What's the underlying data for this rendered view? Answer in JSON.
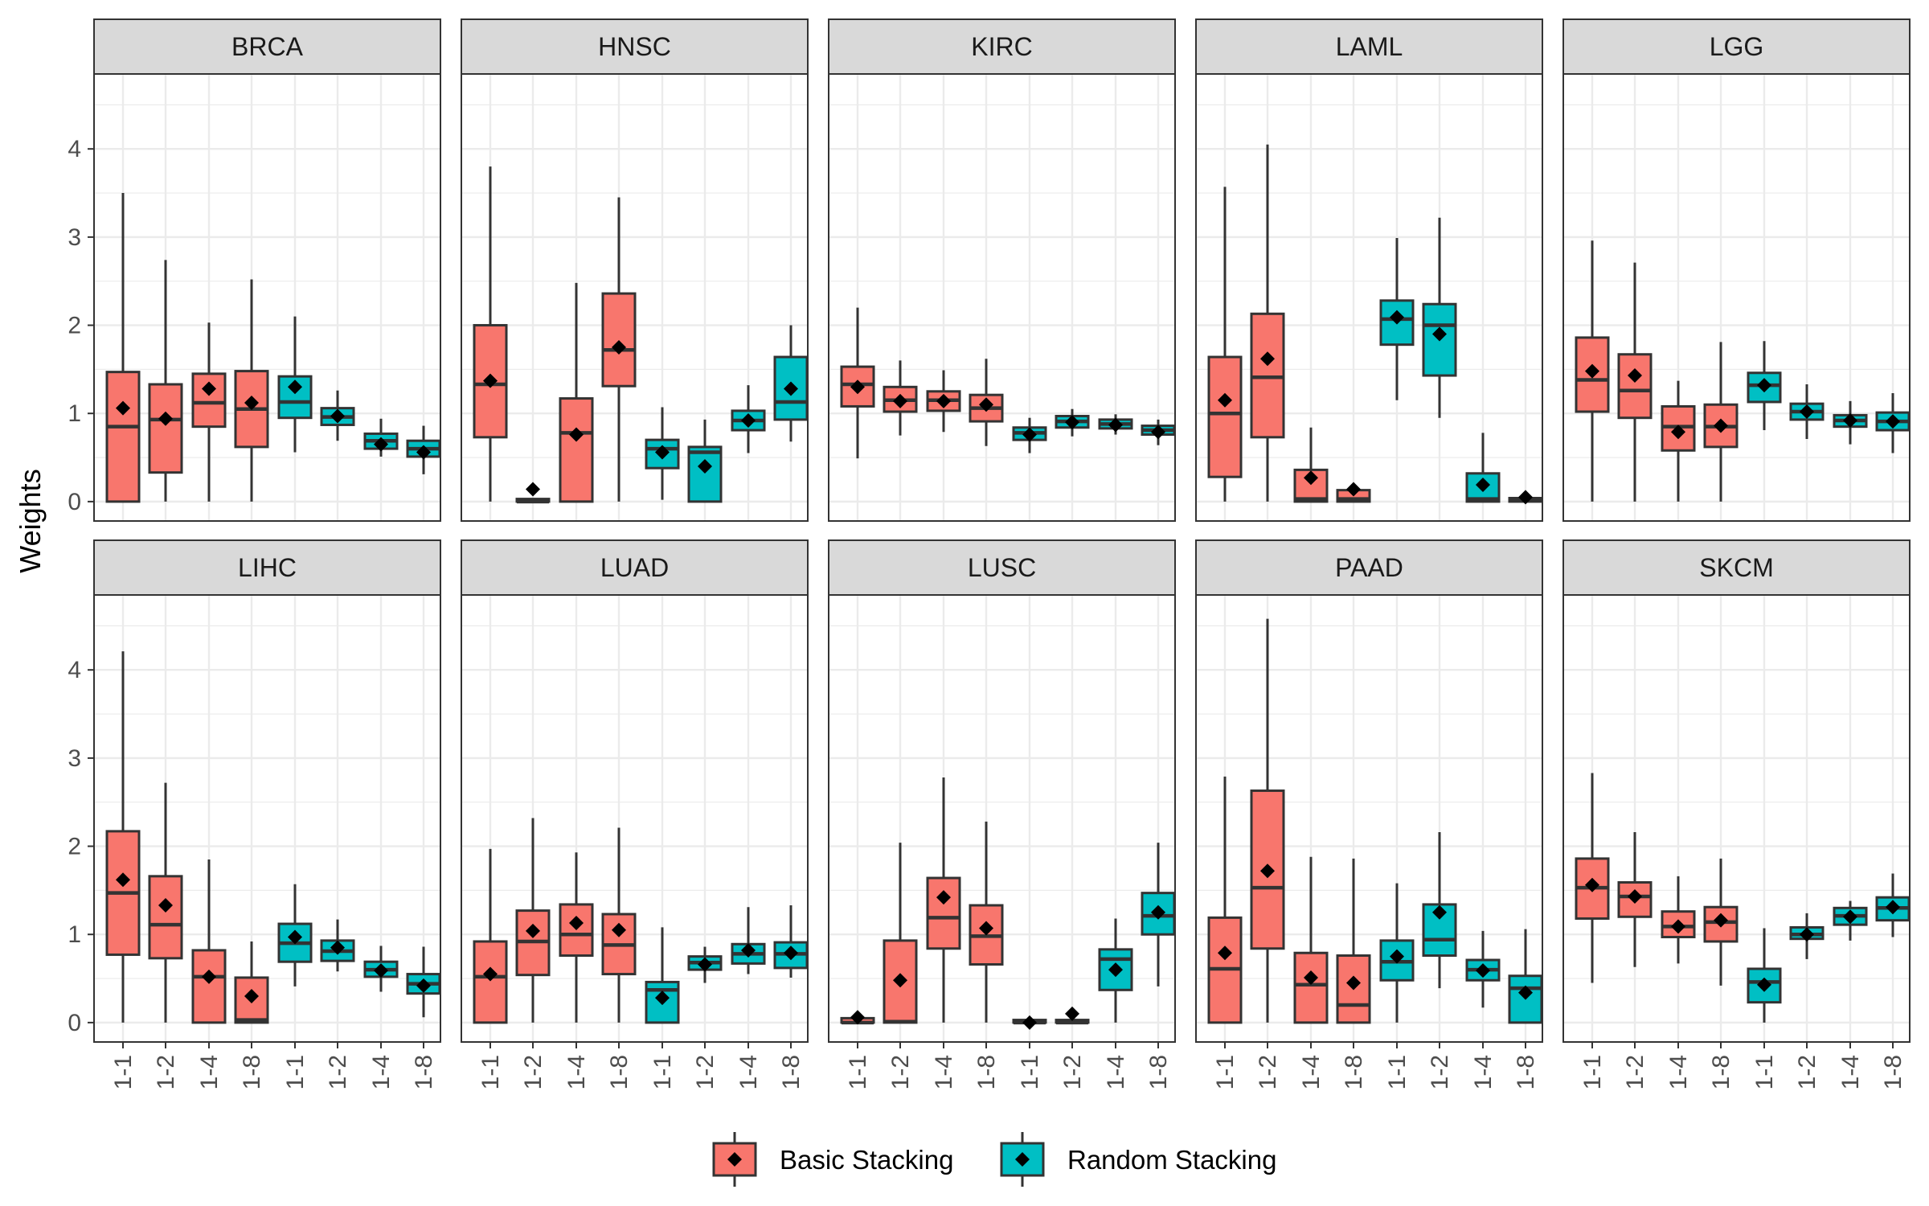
{
  "chart_data": {
    "type": "box",
    "ylabel": "Weights",
    "xlabel": "",
    "ylim": [
      -0.22,
      4.85
    ],
    "yticks": [
      0,
      1,
      2,
      3,
      4
    ],
    "categories": [
      "1-1",
      "1-2",
      "1-4",
      "1-8"
    ],
    "series": [
      {
        "name": "Basic Stacking",
        "color": "#F8766D"
      },
      {
        "name": "Random Stacking",
        "color": "#00BFC4"
      }
    ],
    "box_fields": [
      "ymin",
      "q1",
      "median",
      "q3",
      "ymax",
      "mean"
    ],
    "panels": [
      {
        "title": "BRCA",
        "basic": [
          [
            0,
            0,
            0.85,
            1.47,
            3.5,
            1.06
          ],
          [
            0,
            0.33,
            0.93,
            1.33,
            2.74,
            0.94
          ],
          [
            0,
            0.85,
            1.12,
            1.45,
            2.03,
            1.28
          ],
          [
            0,
            0.62,
            1.05,
            1.48,
            2.52,
            1.12
          ]
        ],
        "random": [
          [
            0.56,
            0.95,
            1.13,
            1.42,
            2.1,
            1.3
          ],
          [
            0.69,
            0.87,
            0.96,
            1.06,
            1.26,
            0.97
          ],
          [
            0.51,
            0.6,
            0.69,
            0.77,
            0.94,
            0.65
          ],
          [
            0.31,
            0.51,
            0.6,
            0.69,
            0.86,
            0.56
          ]
        ]
      },
      {
        "title": "HNSC",
        "basic": [
          [
            0,
            0.73,
            1.33,
            2.0,
            3.8,
            1.37
          ],
          [
            0,
            0,
            0,
            0.03,
            0.03,
            0.14
          ],
          [
            0,
            0,
            0.78,
            1.17,
            2.48,
            0.76
          ],
          [
            0,
            1.31,
            1.72,
            2.36,
            3.45,
            1.75
          ]
        ],
        "random": [
          [
            0.02,
            0.38,
            0.6,
            0.7,
            1.07,
            0.56
          ],
          [
            0,
            0,
            0.56,
            0.62,
            0.93,
            0.4
          ],
          [
            0.55,
            0.81,
            0.92,
            1.03,
            1.32,
            0.92
          ],
          [
            0.68,
            0.93,
            1.13,
            1.64,
            2.0,
            1.28
          ]
        ]
      },
      {
        "title": "KIRC",
        "basic": [
          [
            0.49,
            1.08,
            1.33,
            1.53,
            2.2,
            1.3
          ],
          [
            0.75,
            1.02,
            1.15,
            1.3,
            1.6,
            1.14
          ],
          [
            0.79,
            1.03,
            1.15,
            1.25,
            1.49,
            1.14
          ],
          [
            0.63,
            0.91,
            1.06,
            1.21,
            1.62,
            1.1
          ]
        ],
        "random": [
          [
            0.55,
            0.7,
            0.78,
            0.84,
            0.95,
            0.76
          ],
          [
            0.74,
            0.84,
            0.91,
            0.97,
            1.05,
            0.9
          ],
          [
            0.76,
            0.83,
            0.88,
            0.93,
            0.99,
            0.87
          ],
          [
            0.64,
            0.76,
            0.81,
            0.86,
            0.93,
            0.79
          ]
        ]
      },
      {
        "title": "LAML",
        "basic": [
          [
            0,
            0.28,
            1.0,
            1.64,
            3.57,
            1.15
          ],
          [
            0,
            0.73,
            1.41,
            2.13,
            4.05,
            1.62
          ],
          [
            0,
            0,
            0.03,
            0.36,
            0.84,
            0.27
          ],
          [
            0,
            0,
            0.03,
            0.13,
            0.13,
            0.14
          ]
        ],
        "random": [
          [
            1.15,
            1.78,
            2.07,
            2.28,
            2.99,
            2.09
          ],
          [
            0.95,
            1.43,
            2.0,
            2.24,
            3.22,
            1.9
          ],
          [
            0,
            0,
            0.03,
            0.32,
            0.78,
            0.19
          ],
          [
            0,
            0,
            0.02,
            0.04,
            0.04,
            0.05
          ]
        ]
      },
      {
        "title": "LGG",
        "basic": [
          [
            0,
            1.02,
            1.38,
            1.86,
            2.96,
            1.48
          ],
          [
            0,
            0.95,
            1.26,
            1.67,
            2.71,
            1.43
          ],
          [
            0,
            0.58,
            0.85,
            1.08,
            1.37,
            0.79
          ],
          [
            0,
            0.62,
            0.85,
            1.1,
            1.81,
            0.86
          ]
        ],
        "random": [
          [
            0.81,
            1.13,
            1.32,
            1.46,
            1.82,
            1.32
          ],
          [
            0.71,
            0.93,
            1.02,
            1.11,
            1.33,
            1.02
          ],
          [
            0.65,
            0.85,
            0.92,
            0.98,
            1.14,
            0.92
          ],
          [
            0.55,
            0.81,
            0.91,
            1.01,
            1.23,
            0.91
          ]
        ]
      },
      {
        "title": "LIHC",
        "basic": [
          [
            0,
            0.77,
            1.47,
            2.17,
            4.21,
            1.62
          ],
          [
            0,
            0.73,
            1.11,
            1.66,
            2.72,
            1.33
          ],
          [
            0,
            0,
            0.52,
            0.82,
            1.85,
            0.52
          ],
          [
            0,
            0,
            0.03,
            0.51,
            0.92,
            0.3
          ]
        ],
        "random": [
          [
            0.41,
            0.69,
            0.9,
            1.12,
            1.57,
            0.97
          ],
          [
            0.58,
            0.7,
            0.81,
            0.93,
            1.17,
            0.85
          ],
          [
            0.35,
            0.52,
            0.6,
            0.69,
            0.87,
            0.59
          ],
          [
            0.06,
            0.33,
            0.44,
            0.55,
            0.86,
            0.42
          ]
        ]
      },
      {
        "title": "LUAD",
        "basic": [
          [
            0,
            0,
            0.52,
            0.92,
            1.97,
            0.55
          ],
          [
            0,
            0.54,
            0.92,
            1.27,
            2.32,
            1.04
          ],
          [
            0,
            0.76,
            1.0,
            1.34,
            1.93,
            1.13
          ],
          [
            0,
            0.55,
            0.88,
            1.23,
            2.21,
            1.05
          ]
        ],
        "random": [
          [
            0,
            0,
            0.37,
            0.46,
            1.08,
            0.28
          ],
          [
            0.45,
            0.6,
            0.68,
            0.75,
            0.86,
            0.66
          ],
          [
            0.55,
            0.67,
            0.78,
            0.89,
            1.31,
            0.82
          ],
          [
            0.51,
            0.62,
            0.78,
            0.91,
            1.33,
            0.79
          ]
        ]
      },
      {
        "title": "LUSC",
        "basic": [
          [
            0,
            0,
            0,
            0.05,
            0.05,
            0.06
          ],
          [
            0,
            0,
            0.01,
            0.93,
            2.04,
            0.48
          ],
          [
            0,
            0.84,
            1.19,
            1.64,
            2.78,
            1.42
          ],
          [
            0,
            0.66,
            0.98,
            1.33,
            2.28,
            1.07
          ]
        ],
        "random": [
          [
            0,
            0,
            0,
            0.03,
            0.03,
            0
          ],
          [
            0,
            0,
            0,
            0.03,
            0.03,
            0.1
          ],
          [
            0,
            0.37,
            0.72,
            0.83,
            1.18,
            0.6
          ],
          [
            0.41,
            1.0,
            1.21,
            1.47,
            2.04,
            1.25
          ]
        ]
      },
      {
        "title": "PAAD",
        "basic": [
          [
            0,
            0,
            0.61,
            1.19,
            2.79,
            0.79
          ],
          [
            0,
            0.84,
            1.53,
            2.63,
            4.58,
            1.72
          ],
          [
            0,
            0,
            0.43,
            0.79,
            1.88,
            0.51
          ],
          [
            0,
            0,
            0.2,
            0.76,
            1.86,
            0.45
          ]
        ],
        "random": [
          [
            0,
            0.48,
            0.69,
            0.93,
            1.58,
            0.75
          ],
          [
            0.39,
            0.76,
            0.94,
            1.34,
            2.16,
            1.25
          ],
          [
            0.17,
            0.48,
            0.6,
            0.71,
            1.04,
            0.59
          ],
          [
            0,
            0,
            0.39,
            0.53,
            1.06,
            0.34
          ]
        ]
      },
      {
        "title": "SKCM",
        "basic": [
          [
            0.45,
            1.18,
            1.53,
            1.86,
            2.83,
            1.56
          ],
          [
            0.63,
            1.2,
            1.43,
            1.59,
            2.16,
            1.43
          ],
          [
            0.67,
            0.97,
            1.09,
            1.26,
            1.66,
            1.09
          ],
          [
            0.42,
            0.92,
            1.14,
            1.31,
            1.86,
            1.16
          ]
        ],
        "random": [
          [
            0,
            0.23,
            0.46,
            0.61,
            1.07,
            0.43
          ],
          [
            0.72,
            0.95,
            1.0,
            1.08,
            1.24,
            1.0
          ],
          [
            0.93,
            1.11,
            1.21,
            1.3,
            1.38,
            1.2
          ],
          [
            0.97,
            1.16,
            1.3,
            1.42,
            1.69,
            1.31
          ]
        ]
      }
    ],
    "legend": {
      "position": "bottom",
      "entries": [
        "Basic Stacking",
        "Random Stacking"
      ]
    },
    "mean_marker": "diamond",
    "grid": true
  }
}
